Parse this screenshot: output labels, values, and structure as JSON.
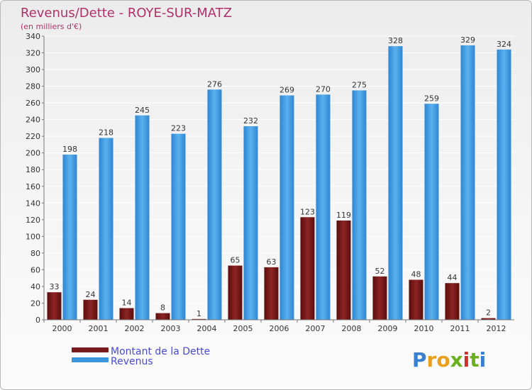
{
  "chart_data": {
    "type": "bar",
    "title": "Revenus/Dette - ROYE-SUR-MATZ",
    "subtitle": "(en milliers d'€)",
    "categories": [
      "2000",
      "2001",
      "2002",
      "2003",
      "2004",
      "2005",
      "2006",
      "2007",
      "2008",
      "2009",
      "2010",
      "2011",
      "2012"
    ],
    "series": [
      {
        "name": "Montant de la Dette",
        "color": "#7a1a1a",
        "values": [
          33,
          24,
          14,
          8,
          1,
          65,
          63,
          123,
          119,
          52,
          48,
          44,
          2
        ]
      },
      {
        "name": "Revenus",
        "color": "#3b95dd",
        "values": [
          198,
          218,
          245,
          223,
          276,
          232,
          269,
          270,
          275,
          328,
          259,
          329,
          324
        ]
      }
    ],
    "ylim": [
      0,
      340
    ],
    "ytick_step": 20,
    "grid": true,
    "legend": "bottom-left"
  },
  "brand": {
    "logo_text": "Proxiti"
  }
}
